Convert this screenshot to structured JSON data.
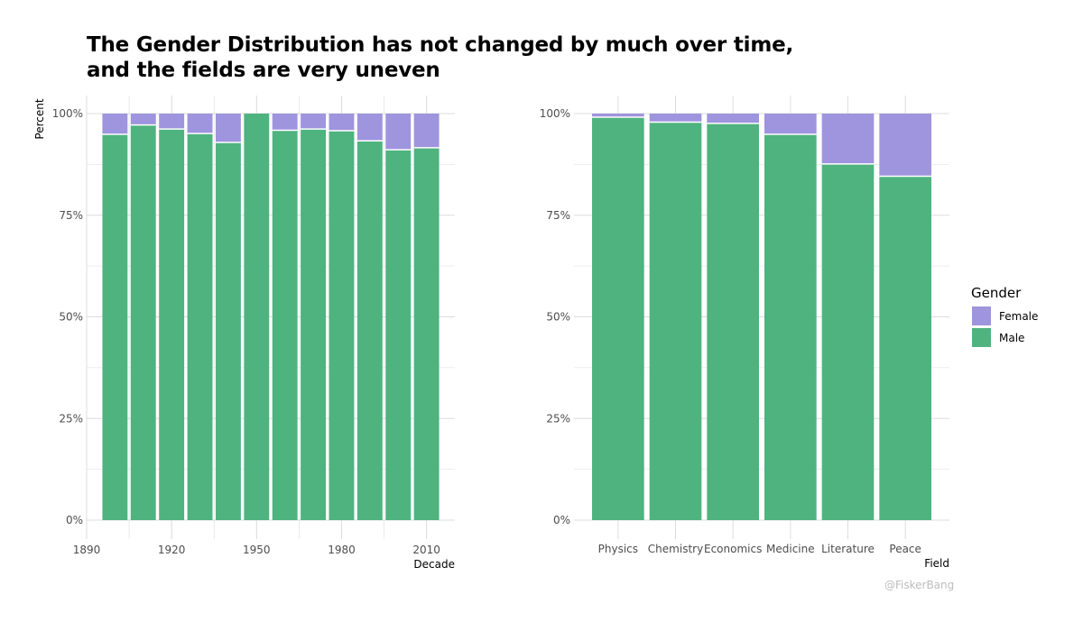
{
  "title_line1": "The Gender Distribution has not changed by much over time,",
  "title_line2": "and the fields are very uneven",
  "credit": "@FiskerBang",
  "colors": {
    "female": "#9f94de",
    "male": "#4fb37f",
    "grid": "#dcdcdc"
  },
  "chart_data": [
    {
      "type": "bar",
      "stacked": "percent",
      "ylabel": "Percent",
      "xlabel": "Decade",
      "x_axis": {
        "min": 1890,
        "max": 2020,
        "ticks": [
          1890,
          1920,
          1950,
          1980,
          2010
        ]
      },
      "y_ticks": [
        "0%",
        "25%",
        "50%",
        "75%",
        "100%"
      ],
      "ylim": [
        0,
        100
      ],
      "x": [
        1900,
        1910,
        1920,
        1930,
        1940,
        1950,
        1960,
        1970,
        1980,
        1990,
        2000,
        2010
      ],
      "series": [
        {
          "name": "Male",
          "values": [
            94.9,
            97.2,
            96.2,
            95.1,
            92.9,
            100,
            95.9,
            96.2,
            95.8,
            93.3,
            91.1,
            91.6
          ]
        },
        {
          "name": "Female",
          "values": [
            5.1,
            2.8,
            3.8,
            4.9,
            7.1,
            0,
            4.1,
            3.8,
            4.2,
            6.7,
            8.9,
            8.4
          ]
        }
      ],
      "grid": true
    },
    {
      "type": "bar",
      "stacked": "percent",
      "xlabel": "Field",
      "y_ticks": [
        "0%",
        "25%",
        "50%",
        "75%",
        "100%"
      ],
      "ylim": [
        0,
        100
      ],
      "categories": [
        "Physics",
        "Chemistry",
        "Economics",
        "Medicine",
        "Literature",
        "Peace"
      ],
      "series": [
        {
          "name": "Male",
          "values": [
            99.1,
            97.9,
            97.6,
            94.9,
            87.6,
            84.6
          ]
        },
        {
          "name": "Female",
          "values": [
            0.9,
            2.1,
            2.4,
            5.1,
            12.4,
            15.4
          ]
        }
      ],
      "grid": true
    }
  ],
  "legend": {
    "title": "Gender",
    "items": [
      {
        "label": "Female",
        "color": "#9f94de"
      },
      {
        "label": "Male",
        "color": "#4fb37f"
      }
    ]
  }
}
